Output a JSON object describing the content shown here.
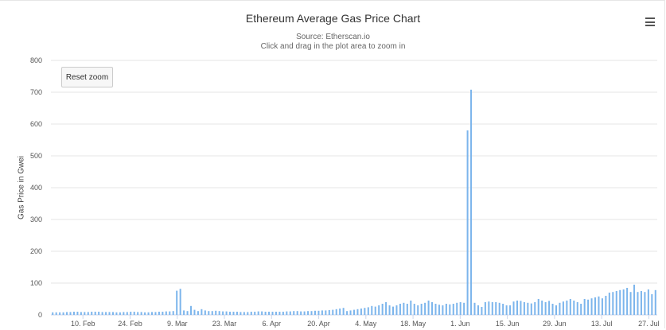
{
  "chart_data": {
    "type": "bar",
    "title": "Ethereum Average Gas Price Chart",
    "subtitle_source": "Source: Etherscan.io",
    "subtitle_hint": "Click and drag in the plot area to zoom in",
    "ylabel": "Gas Price in Gwei",
    "xlabel": "",
    "ylim": [
      0,
      800
    ],
    "yticks": [
      "0",
      "100",
      "200",
      "300",
      "400",
      "500",
      "600",
      "700",
      "800"
    ],
    "xticks": [
      "10. Feb",
      "24. Feb",
      "9. Mar",
      "23. Mar",
      "6. Apr",
      "20. Apr",
      "4. May",
      "18. May",
      "1. Jun",
      "15. Jun",
      "29. Jun",
      "13. Jul",
      "27. Jul"
    ],
    "date_range": [
      "1. Feb",
      "31. Jul"
    ],
    "series": [
      {
        "name": "Gas Price (Gwei)",
        "color": "#7cb5ec",
        "values": [
          8,
          8,
          8,
          8,
          9,
          9,
          10,
          10,
          9,
          9,
          9,
          10,
          10,
          10,
          9,
          9,
          9,
          9,
          8,
          8,
          9,
          9,
          10,
          10,
          9,
          9,
          8,
          8,
          9,
          9,
          10,
          10,
          11,
          11,
          12,
          76,
          82,
          14,
          12,
          28,
          16,
          12,
          18,
          14,
          12,
          12,
          13,
          12,
          11,
          11,
          10,
          10,
          10,
          9,
          9,
          9,
          10,
          10,
          11,
          11,
          10,
          10,
          10,
          10,
          10,
          10,
          11,
          11,
          12,
          12,
          11,
          11,
          12,
          12,
          13,
          13,
          14,
          14,
          15,
          16,
          18,
          20,
          22,
          12,
          14,
          16,
          18,
          20,
          22,
          24,
          28,
          26,
          30,
          35,
          40,
          30,
          26,
          30,
          35,
          38,
          35,
          45,
          35,
          30,
          35,
          38,
          45,
          40,
          35,
          32,
          30,
          35,
          33,
          35,
          38,
          40,
          38,
          580,
          708,
          38,
          30,
          25,
          40,
          42,
          40,
          40,
          38,
          35,
          30,
          30,
          42,
          45,
          44,
          40,
          38,
          36,
          40,
          50,
          45,
          40,
          44,
          35,
          30,
          38,
          42,
          45,
          50,
          45,
          40,
          35,
          50,
          48,
          52,
          55,
          58,
          52,
          60,
          70,
          72,
          75,
          78,
          80,
          85,
          72,
          95,
          72,
          75,
          72,
          80,
          65,
          78
        ]
      }
    ]
  },
  "toolbar": {
    "reset_zoom_label": "Reset zoom",
    "menu_icon": "hamburger-menu-icon"
  }
}
